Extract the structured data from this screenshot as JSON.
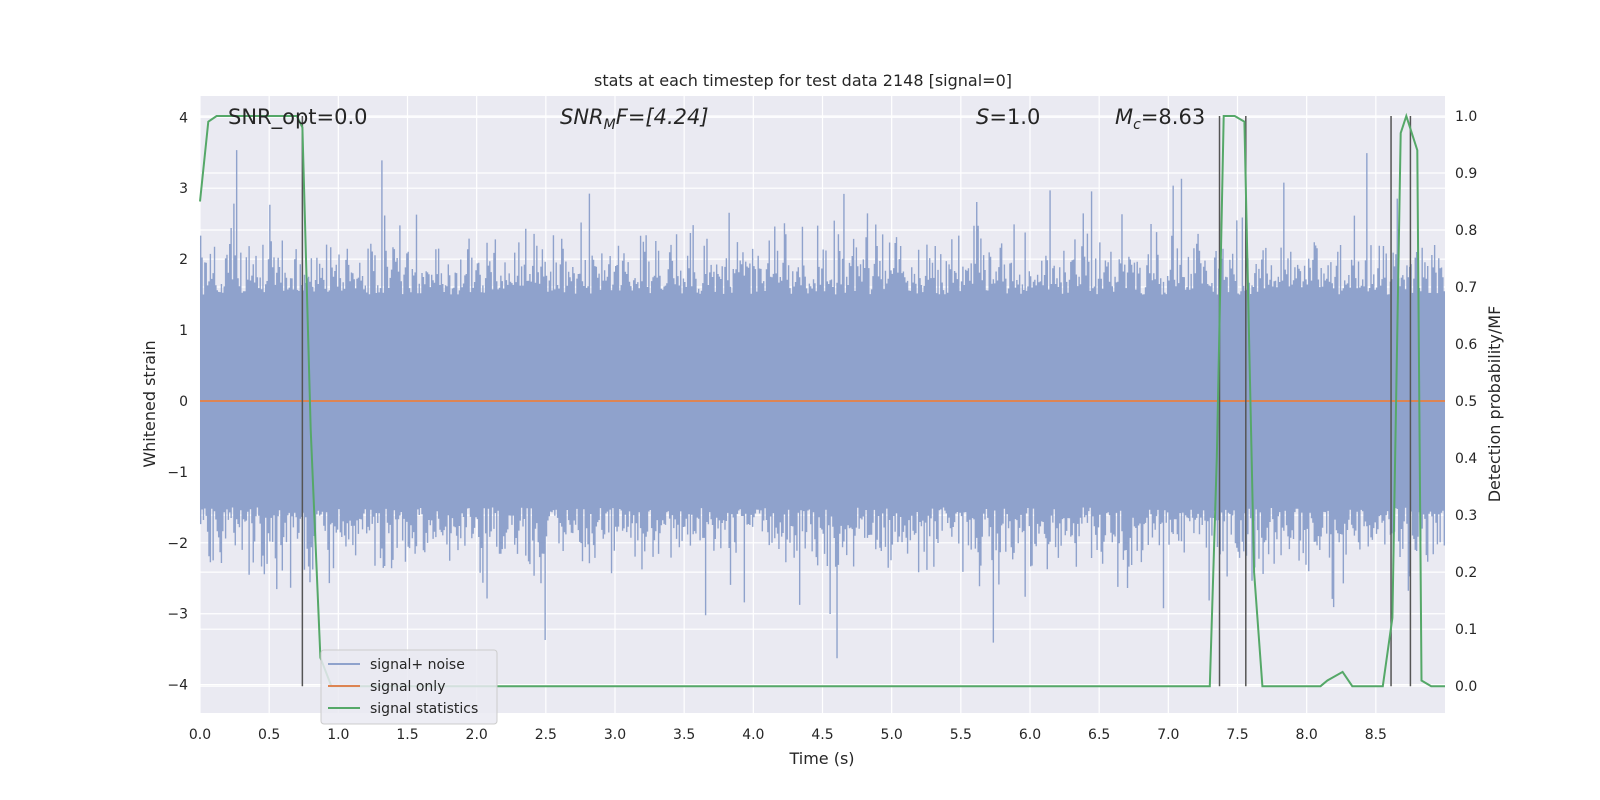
{
  "chart_data": {
    "type": "line",
    "title": "stats at each timestep for test data 2148 [signal=0]",
    "xlabel": "Time (s)",
    "ylabel": "Whitened strain",
    "y2label": "Detection probability/MF",
    "xlim": [
      0.0,
      9.0
    ],
    "ylim": [
      -4.4,
      4.3
    ],
    "y2lim": [
      -0.047,
      1.035
    ],
    "xticks": [
      "0.0",
      "0.5",
      "1.0",
      "1.5",
      "2.0",
      "2.5",
      "3.0",
      "3.5",
      "4.0",
      "4.5",
      "5.0",
      "5.5",
      "6.0",
      "6.5",
      "7.0",
      "7.5",
      "8.0",
      "8.5"
    ],
    "yticks": [
      "4",
      "3",
      "2",
      "1",
      "0",
      "−1",
      "−2",
      "−3",
      "−4"
    ],
    "y2ticks": [
      "1.0",
      "0.9",
      "0.8",
      "0.7",
      "0.6",
      "0.5",
      "0.4",
      "0.3",
      "0.2",
      "0.1",
      "0.0"
    ],
    "grid": true,
    "legend_position": "lower-left",
    "annotations": {
      "snr_opt": "SNR_opt=0.0",
      "snr_mf_main": "SNR",
      "snr_mf_sub": "M",
      "snr_mf_tail": "F=[4.24]",
      "s_main": "S",
      "s_tail": "=1.0",
      "mc_main": "M",
      "mc_sub": "c",
      "mc_tail": "=8.63"
    },
    "series": [
      {
        "name": "signal+ noise",
        "color": "#8fa2cc",
        "style": "noise band, amplitude mostly within ±2.5, peaks near ±4",
        "seed": 2148
      },
      {
        "name": "signal only",
        "color": "#dd8452",
        "x": [
          0.0,
          9.0
        ],
        "y": [
          0.0,
          0.0
        ]
      },
      {
        "name": "signal statistics",
        "color": "#55a868",
        "axis": "right",
        "x": [
          0.0,
          0.06,
          0.12,
          0.5,
          0.7,
          0.74,
          0.8,
          0.87,
          0.95,
          7.3,
          7.35,
          7.4,
          7.48,
          7.55,
          7.62,
          7.68,
          8.1,
          8.15,
          8.26,
          8.33,
          8.55,
          8.62,
          8.68,
          8.72,
          8.8,
          8.83,
          8.9,
          9.0
        ],
        "y": [
          0.85,
          0.99,
          1.0,
          1.0,
          1.0,
          0.98,
          0.45,
          0.05,
          0.0,
          0.0,
          0.4,
          1.0,
          1.0,
          0.99,
          0.2,
          0.0,
          0.0,
          0.01,
          0.025,
          0.0,
          0.0,
          0.12,
          0.97,
          1.0,
          0.94,
          0.01,
          0.0,
          0.0
        ]
      }
    ],
    "vertical_lines": [
      0.74,
      7.37,
      7.56,
      8.61,
      8.75
    ],
    "vertical_line_color": "#555555"
  }
}
